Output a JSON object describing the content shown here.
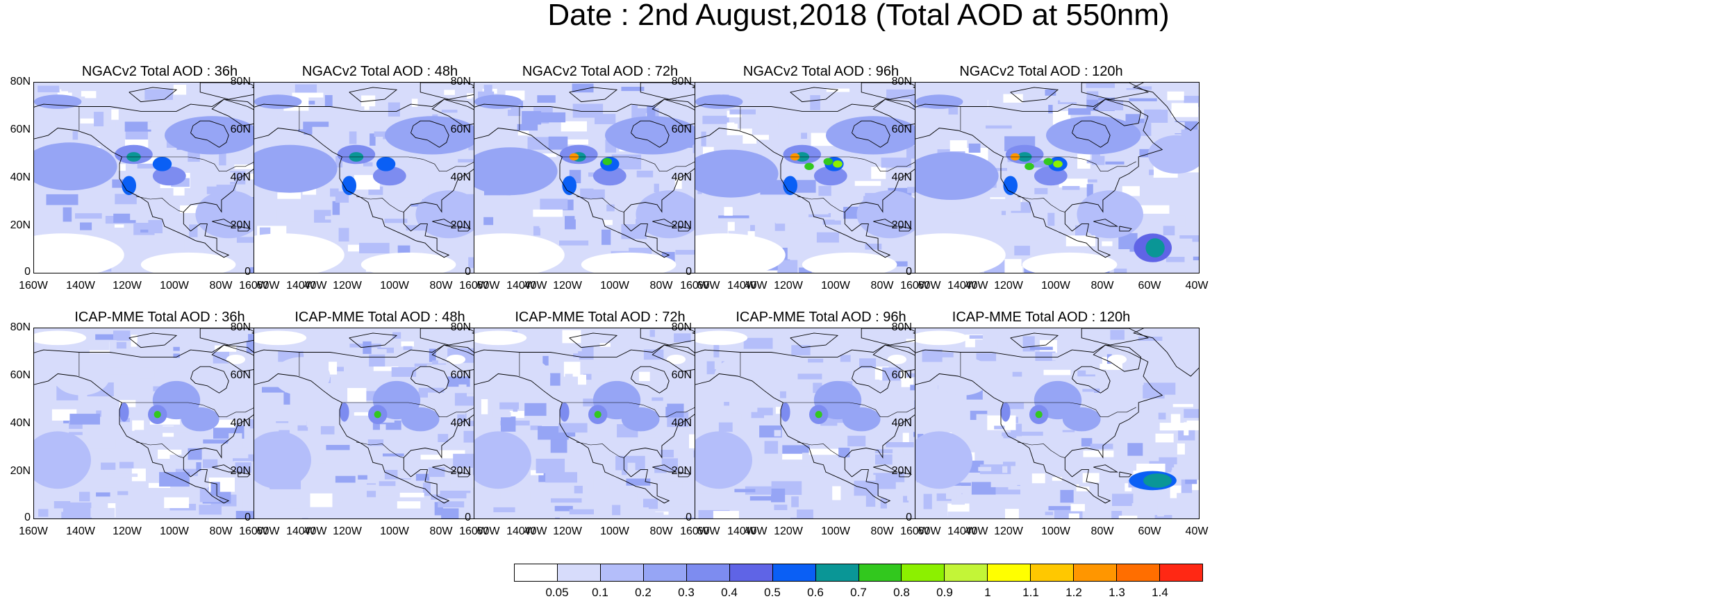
{
  "title": "Date : 2nd August,2018 (Total AOD at 550nm)",
  "y_ticks": [
    "80N",
    "60N",
    "40N",
    "20N",
    "0"
  ],
  "x_ticks": [
    "160W",
    "140W",
    "120W",
    "100W",
    "80W",
    "60W",
    "40W"
  ],
  "rows": [
    {
      "model": "NGACv2",
      "panels": [
        {
          "label": "NGACv2 Total AOD : 36h",
          "lead_hours": 36
        },
        {
          "label": "NGACv2 Total AOD : 48h",
          "lead_hours": 48
        },
        {
          "label": "NGACv2 Total AOD : 72h",
          "lead_hours": 72
        },
        {
          "label": "NGACv2 Total AOD : 96h",
          "lead_hours": 96
        },
        {
          "label": "NGACv2 Total AOD : 120h",
          "lead_hours": 120
        }
      ]
    },
    {
      "model": "ICAP-MME",
      "panels": [
        {
          "label": "ICAP-MME Total AOD : 36h",
          "lead_hours": 36
        },
        {
          "label": "ICAP-MME Total AOD : 48h",
          "lead_hours": 48
        },
        {
          "label": "ICAP-MME Total AOD : 72h",
          "lead_hours": 72
        },
        {
          "label": "ICAP-MME Total AOD : 96h",
          "lead_hours": 96
        },
        {
          "label": "ICAP-MME Total AOD : 120h",
          "lead_hours": 120
        }
      ]
    }
  ],
  "colorbar": {
    "labels": [
      "0.05",
      "0.1",
      "0.2",
      "0.3",
      "0.4",
      "0.5",
      "0.6",
      "0.7",
      "0.8",
      "0.9",
      "1",
      "1.1",
      "1.2",
      "1.3",
      "1.4"
    ],
    "colors": [
      "#ffffff",
      "#d7dcfb",
      "#b4befa",
      "#96a5f5",
      "#7d8cf0",
      "#5f64e6",
      "#0a5ff5",
      "#0a9696",
      "#32c81e",
      "#8cf000",
      "#c3f537",
      "#ffff00",
      "#ffc800",
      "#ff9600",
      "#ff6e00",
      "#ff2814"
    ]
  }
}
